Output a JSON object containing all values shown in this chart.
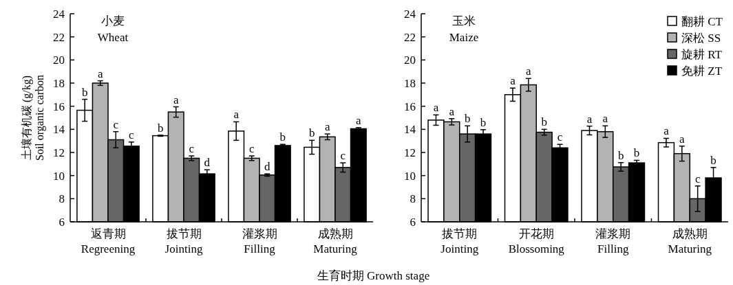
{
  "chart_data": [
    {
      "type": "bar",
      "title": "小麦",
      "subtitle": "Wheat",
      "ylabel": "土壤有机碳 (g/kg)\nSoil organic carbon",
      "xlabel": "生育时期 Growth stage",
      "categories": [
        "返青期\nRegreening",
        "拔节期\nJointing",
        "灌浆期\nFilling",
        "成熟期\nMaturing"
      ],
      "ylim": [
        6,
        24
      ],
      "yticks": [
        6,
        8,
        10,
        12,
        14,
        16,
        18,
        20,
        22,
        24
      ],
      "legend": false,
      "series": [
        {
          "color": "#ffffff",
          "values": [
            15.65,
            13.45,
            13.85,
            12.45
          ],
          "errors": [
            0.95,
            0.05,
            0.8,
            0.6
          ],
          "value_labels": [
            "b",
            "b",
            "a",
            "b"
          ]
        },
        {
          "color": "#b3b3b3",
          "values": [
            18.0,
            15.5,
            11.5,
            13.35
          ],
          "errors": [
            0.2,
            0.45,
            0.2,
            0.25
          ],
          "value_labels": [
            "a",
            "a",
            "c",
            "a"
          ]
        },
        {
          "color": "#666666",
          "values": [
            13.1,
            11.5,
            10.05,
            10.7
          ],
          "errors": [
            0.7,
            0.2,
            0.1,
            0.4
          ],
          "value_labels": [
            "c",
            "c",
            "d",
            "c"
          ]
        },
        {
          "color": "#000000",
          "values": [
            12.55,
            10.15,
            12.6,
            14.05
          ],
          "errors": [
            0.35,
            0.35,
            0.1,
            0.1
          ],
          "value_labels": [
            "c",
            "d",
            "b",
            "a"
          ]
        }
      ]
    },
    {
      "type": "bar",
      "title": "玉米",
      "subtitle": "Maize",
      "categories": [
        "拔节期\nJointing",
        "开花期\nBlossoming",
        "灌浆期\nFilling",
        "成熟期\nMaturing"
      ],
      "ylim": [
        6,
        24
      ],
      "yticks": [
        6,
        8,
        10,
        12,
        14,
        16,
        18,
        20,
        22,
        24
      ],
      "legend": "top right",
      "series": [
        {
          "name": "翻耕 CT",
          "color": "#ffffff",
          "values": [
            14.8,
            17.0,
            13.9,
            12.85
          ],
          "errors": [
            0.45,
            0.57,
            0.38,
            0.37
          ],
          "value_labels": [
            "a",
            "a",
            "a",
            "a"
          ]
        },
        {
          "name": "深松 SS",
          "color": "#b3b3b3",
          "values": [
            14.65,
            17.85,
            13.8,
            11.9
          ],
          "errors": [
            0.27,
            0.55,
            0.5,
            0.65
          ],
          "value_labels": [
            "a",
            "a",
            "a",
            "a"
          ]
        },
        {
          "name": "旋耕 RT",
          "color": "#666666",
          "values": [
            13.6,
            13.75,
            10.75,
            8.0
          ],
          "errors": [
            0.7,
            0.25,
            0.37,
            1.1
          ],
          "value_labels": [
            "b",
            "b",
            "b",
            "c"
          ]
        },
        {
          "name": "免耕 ZT",
          "color": "#000000",
          "values": [
            13.6,
            12.4,
            11.1,
            9.8
          ],
          "errors": [
            0.37,
            0.3,
            0.22,
            0.9
          ],
          "value_labels": [
            "b",
            "c",
            "b",
            "b"
          ]
        }
      ]
    }
  ]
}
